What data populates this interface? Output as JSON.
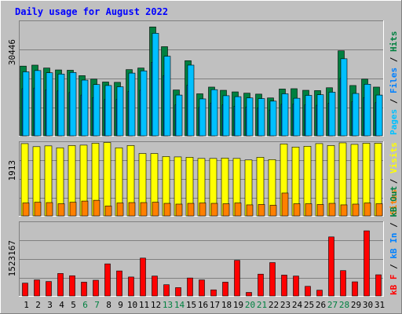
{
  "title": "Daily usage for August 2022",
  "colors": {
    "frame_bg": "#c0c0c0",
    "plot_bg": "#c0c0c0",
    "title": "#0000ff",
    "hits": "#008040",
    "files": "#0080ff",
    "pages": "#00c0ff",
    "visits": "#ffff00",
    "sites": "#ff8000",
    "kb": "#ff0000",
    "weekend": "#008040",
    "weekday": "#000000",
    "right_labels_slash": "#000000"
  },
  "chart_data": [
    {
      "type": "bar",
      "panel": "hits-files-pages",
      "y_tick_label": "30446",
      "ylim": [
        0,
        36000
      ],
      "grid": true,
      "right_label": [
        {
          "text": "Pages",
          "color_key": "pages"
        },
        {
          "text": " / ",
          "color_key": "right_labels_slash"
        },
        {
          "text": "Files",
          "color_key": "files"
        },
        {
          "text": " / ",
          "color_key": "right_labels_slash"
        },
        {
          "text": "Hits",
          "color_key": "hits"
        }
      ],
      "categories": [
        "1",
        "2",
        "3",
        "4",
        "5",
        "6",
        "7",
        "8",
        "9",
        "10",
        "11",
        "12",
        "13",
        "14",
        "15",
        "16",
        "17",
        "18",
        "19",
        "20",
        "21",
        "22",
        "23",
        "24",
        "25",
        "26",
        "27",
        "28",
        "29",
        "30",
        "31"
      ],
      "series": [
        {
          "name": "Hits",
          "color_key": "hits",
          "values": [
            21900,
            22200,
            21300,
            20700,
            20600,
            18900,
            17800,
            16900,
            16800,
            20800,
            21300,
            34200,
            28000,
            14400,
            23600,
            13200,
            15300,
            14300,
            13800,
            13400,
            13100,
            11900,
            14700,
            14800,
            14300,
            14200,
            15100,
            26700,
            15800,
            17800,
            15300
          ]
        },
        {
          "name": "Files",
          "color_key": "files",
          "values": [
            14800,
            15000,
            14400,
            14100,
            13600,
            12800,
            12000,
            11400,
            11400,
            13900,
            14300,
            23100,
            18900,
            9700,
            15900,
            8900,
            10300,
            9700,
            9300,
            9000,
            8800,
            8100,
            9900,
            10000,
            9700,
            9600,
            10200,
            18000,
            10700,
            12000,
            10400
          ]
        },
        {
          "name": "Pages",
          "color_key": "pages",
          "values": [
            20100,
            20500,
            19800,
            19400,
            19900,
            17500,
            16100,
            15800,
            15400,
            19700,
            20400,
            32200,
            25000,
            12800,
            22200,
            11600,
            14500,
            12600,
            12300,
            11900,
            11700,
            10900,
            13200,
            11800,
            12700,
            12900,
            13700,
            24200,
            13300,
            16200,
            12800
          ]
        }
      ]
    },
    {
      "type": "bar",
      "panel": "visits-sites",
      "y_tick_label": "1913",
      "ylim": [
        0,
        1940
      ],
      "grid": true,
      "right_label": [
        {
          "text": "Sites",
          "color_key": "sites"
        },
        {
          "text": " / ",
          "color_key": "right_labels_slash"
        },
        {
          "text": "Visits",
          "color_key": "visits"
        }
      ],
      "categories": [
        "1",
        "2",
        "3",
        "4",
        "5",
        "6",
        "7",
        "8",
        "9",
        "10",
        "11",
        "12",
        "13",
        "14",
        "15",
        "16",
        "17",
        "18",
        "19",
        "20",
        "21",
        "22",
        "23",
        "24",
        "25",
        "26",
        "27",
        "28",
        "29",
        "30",
        "31"
      ],
      "series": [
        {
          "name": "Visits",
          "color_key": "visits",
          "values": [
            1900,
            1820,
            1840,
            1790,
            1850,
            1860,
            1910,
            1930,
            1790,
            1850,
            1640,
            1640,
            1560,
            1550,
            1540,
            1510,
            1510,
            1520,
            1510,
            1470,
            1540,
            1480,
            1890,
            1810,
            1830,
            1900,
            1850,
            1920,
            1880,
            1910,
            1910
          ]
        },
        {
          "name": "Sites",
          "color_key": "sites",
          "values": [
            340,
            360,
            350,
            320,
            360,
            390,
            410,
            260,
            340,
            350,
            350,
            360,
            330,
            310,
            330,
            340,
            330,
            320,
            340,
            290,
            300,
            280,
            600,
            320,
            320,
            300,
            330,
            290,
            310,
            340,
            320
          ]
        }
      ]
    },
    {
      "type": "bar",
      "panel": "kb",
      "y_tick_label": "1523167",
      "ylim": [
        0,
        2300000
      ],
      "grid": true,
      "right_label": [
        {
          "text": "kB F",
          "color_key": "kb"
        },
        {
          "text": " / ",
          "color_key": "right_labels_slash"
        },
        {
          "text": "kB In",
          "color_key": "files"
        },
        {
          "text": " / ",
          "color_key": "right_labels_slash"
        },
        {
          "text": "kB Out",
          "color_key": "hits"
        }
      ],
      "categories": [
        "1",
        "2",
        "3",
        "4",
        "5",
        "6",
        "7",
        "8",
        "9",
        "10",
        "11",
        "12",
        "13",
        "14",
        "15",
        "16",
        "17",
        "18",
        "19",
        "20",
        "21",
        "22",
        "23",
        "24",
        "25",
        "26",
        "27",
        "28",
        "29",
        "30",
        "31"
      ],
      "series": [
        {
          "name": "kB F",
          "color_key": "kb",
          "values": [
            400000,
            500000,
            450000,
            700000,
            630000,
            430000,
            490000,
            1000000,
            780000,
            590000,
            1180000,
            620000,
            350000,
            260000,
            560000,
            500000,
            190000,
            430000,
            1110000,
            110000,
            680000,
            1040000,
            650000,
            620000,
            300000,
            180000,
            1840000,
            790000,
            440000,
            2030000,
            660000
          ]
        }
      ]
    }
  ],
  "x_axis": {
    "days": [
      "1",
      "2",
      "3",
      "4",
      "5",
      "6",
      "7",
      "8",
      "9",
      "10",
      "11",
      "12",
      "13",
      "14",
      "15",
      "16",
      "17",
      "18",
      "19",
      "20",
      "21",
      "22",
      "23",
      "24",
      "25",
      "26",
      "27",
      "28",
      "29",
      "30",
      "31"
    ],
    "weekend_days": [
      "6",
      "7",
      "13",
      "14",
      "20",
      "21",
      "27",
      "28"
    ]
  }
}
